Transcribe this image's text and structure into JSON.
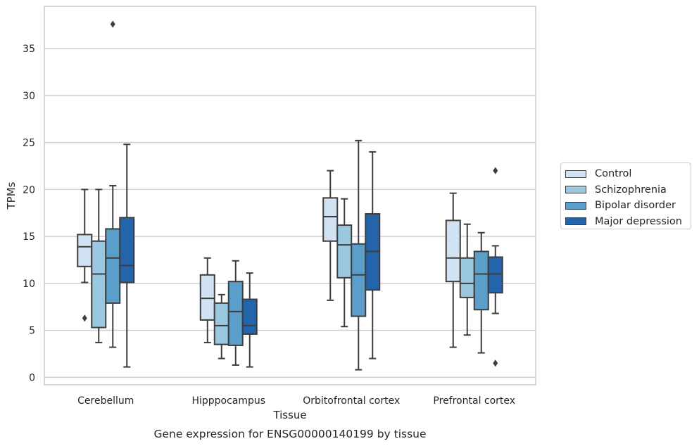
{
  "chart_data": {
    "type": "box",
    "title": "",
    "xlabel": "Tissue",
    "ylabel": "TPMs",
    "caption": "Gene expression for ENSG00000140199 by tissue",
    "ylim": [
      -0.8,
      39.5
    ],
    "yticks": [
      0,
      5,
      10,
      15,
      20,
      25,
      30,
      35
    ],
    "grid": "horizontal",
    "legend_position": "right",
    "categories": [
      "Cerebellum",
      "Hipppocampus",
      "Orbitofrontal cortex",
      "Prefrontal cortex"
    ],
    "series": [
      {
        "name": "Control",
        "color": "#d1e2f2",
        "boxes": [
          {
            "whisker_low": 10.1,
            "q1": 11.8,
            "median": 13.9,
            "q3": 15.2,
            "whisker_high": 20.0,
            "outliers": [
              6.3
            ]
          },
          {
            "whisker_low": 3.7,
            "q1": 6.1,
            "median": 8.4,
            "q3": 10.9,
            "whisker_high": 12.7,
            "outliers": []
          },
          {
            "whisker_low": 8.2,
            "q1": 14.5,
            "median": 17.1,
            "q3": 19.1,
            "whisker_high": 22.0,
            "outliers": []
          },
          {
            "whisker_low": 3.2,
            "q1": 10.2,
            "median": 12.7,
            "q3": 16.7,
            "whisker_high": 19.6,
            "outliers": []
          }
        ]
      },
      {
        "name": "Schizophrenia",
        "color": "#9ac8e0",
        "boxes": [
          {
            "whisker_low": 3.7,
            "q1": 5.3,
            "median": 11.0,
            "q3": 14.5,
            "whisker_high": 20.0,
            "outliers": []
          },
          {
            "whisker_low": 2.0,
            "q1": 3.5,
            "median": 5.5,
            "q3": 7.9,
            "whisker_high": 8.8,
            "outliers": []
          },
          {
            "whisker_low": 5.4,
            "q1": 10.6,
            "median": 14.1,
            "q3": 16.2,
            "whisker_high": 19.0,
            "outliers": []
          },
          {
            "whisker_low": 4.5,
            "q1": 8.5,
            "median": 10.0,
            "q3": 12.7,
            "whisker_high": 16.3,
            "outliers": []
          }
        ]
      },
      {
        "name": "Bipolar disorder",
        "color": "#5a9ec9",
        "boxes": [
          {
            "whisker_low": 3.2,
            "q1": 7.9,
            "median": 12.7,
            "q3": 15.8,
            "whisker_high": 20.4,
            "outliers": [
              37.6
            ]
          },
          {
            "whisker_low": 1.3,
            "q1": 3.4,
            "median": 7.0,
            "q3": 10.2,
            "whisker_high": 12.4,
            "outliers": []
          },
          {
            "whisker_low": 0.8,
            "q1": 6.5,
            "median": 10.9,
            "q3": 14.2,
            "whisker_high": 25.2,
            "outliers": []
          },
          {
            "whisker_low": 2.6,
            "q1": 7.2,
            "median": 11.0,
            "q3": 13.4,
            "whisker_high": 15.4,
            "outliers": []
          }
        ]
      },
      {
        "name": "Major depression",
        "color": "#2464ab",
        "boxes": [
          {
            "whisker_low": 1.1,
            "q1": 10.1,
            "median": 11.9,
            "q3": 17.0,
            "whisker_high": 24.8,
            "outliers": []
          },
          {
            "whisker_low": 1.1,
            "q1": 4.6,
            "median": 5.5,
            "q3": 8.3,
            "whisker_high": 11.1,
            "outliers": []
          },
          {
            "whisker_low": 2.0,
            "q1": 9.3,
            "median": 13.4,
            "q3": 17.4,
            "whisker_high": 24.0,
            "outliers": []
          },
          {
            "whisker_low": 6.8,
            "q1": 9.0,
            "median": 11.0,
            "q3": 12.8,
            "whisker_high": 14.0,
            "outliers": [
              22.0,
              1.5
            ]
          }
        ]
      }
    ]
  }
}
